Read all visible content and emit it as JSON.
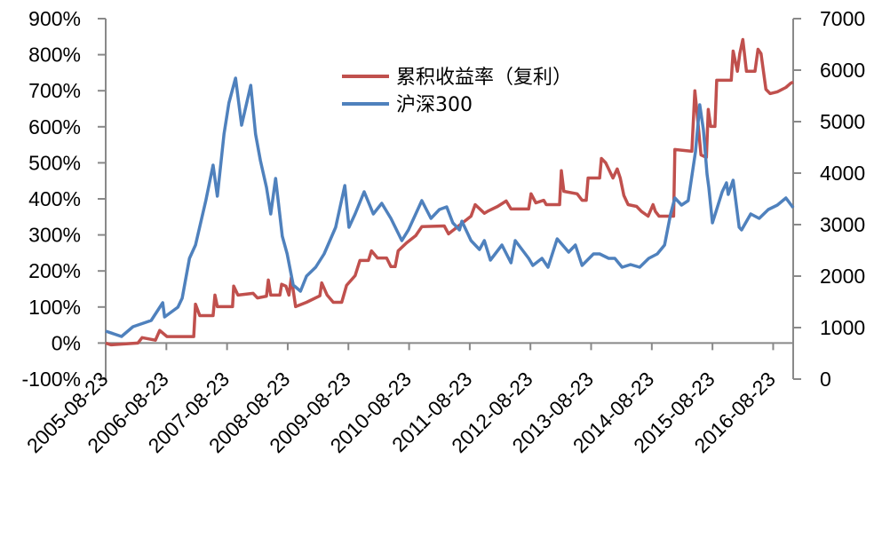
{
  "chart_data": {
    "type": "line",
    "title": "",
    "xlabel": "",
    "ylabel": "",
    "y2label": "",
    "grid": false,
    "legend_position": "top-center",
    "x_range": [
      2005.64,
      2016.97
    ],
    "x_ticks": [
      {
        "x": 2005.64,
        "label": "2005-08-23"
      },
      {
        "x": 2006.64,
        "label": "2006-08-23"
      },
      {
        "x": 2007.64,
        "label": "2007-08-23"
      },
      {
        "x": 2008.64,
        "label": "2008-08-23"
      },
      {
        "x": 2009.64,
        "label": "2009-08-23"
      },
      {
        "x": 2010.64,
        "label": "2010-08-23"
      },
      {
        "x": 2011.64,
        "label": "2011-08-23"
      },
      {
        "x": 2012.64,
        "label": "2012-08-23"
      },
      {
        "x": 2013.64,
        "label": "2013-08-23"
      },
      {
        "x": 2014.64,
        "label": "2014-08-23"
      },
      {
        "x": 2015.64,
        "label": "2015-08-23"
      },
      {
        "x": 2016.64,
        "label": "2016-08-23"
      }
    ],
    "y_left": {
      "range": [
        -100,
        900
      ],
      "ticks": [
        -100,
        0,
        100,
        200,
        300,
        400,
        500,
        600,
        700,
        800,
        900
      ],
      "tick_labels": [
        "-100%",
        "0%",
        "100%",
        "200%",
        "300%",
        "400%",
        "500%",
        "600%",
        "700%",
        "800%",
        "900%"
      ]
    },
    "y_right": {
      "range": [
        0,
        7000
      ],
      "ticks": [
        0,
        1000,
        2000,
        3000,
        4000,
        5000,
        6000,
        7000
      ],
      "tick_labels": [
        "0",
        "1000",
        "2000",
        "3000",
        "4000",
        "5000",
        "6000",
        "7000"
      ]
    },
    "series": [
      {
        "name": "累积收益率（复利）",
        "axis": "left",
        "color": "#c0504d",
        "points": [
          [
            2005.64,
            0
          ],
          [
            2005.73,
            -5
          ],
          [
            2006.17,
            0
          ],
          [
            2006.24,
            15
          ],
          [
            2006.46,
            8
          ],
          [
            2006.53,
            35
          ],
          [
            2006.65,
            18
          ],
          [
            2007.09,
            18
          ],
          [
            2007.12,
            108
          ],
          [
            2007.19,
            76
          ],
          [
            2007.41,
            76
          ],
          [
            2007.44,
            133
          ],
          [
            2007.48,
            101
          ],
          [
            2007.73,
            101
          ],
          [
            2007.75,
            158
          ],
          [
            2007.82,
            133
          ],
          [
            2008.07,
            138
          ],
          [
            2008.14,
            125
          ],
          [
            2008.29,
            130
          ],
          [
            2008.32,
            175
          ],
          [
            2008.36,
            133
          ],
          [
            2008.51,
            133
          ],
          [
            2008.54,
            163
          ],
          [
            2008.61,
            158
          ],
          [
            2008.66,
            133
          ],
          [
            2008.7,
            182
          ],
          [
            2008.77,
            101
          ],
          [
            2008.95,
            113
          ],
          [
            2009.17,
            131
          ],
          [
            2009.2,
            167
          ],
          [
            2009.29,
            133
          ],
          [
            2009.39,
            113
          ],
          [
            2009.53,
            113
          ],
          [
            2009.61,
            160
          ],
          [
            2009.75,
            187
          ],
          [
            2009.83,
            229
          ],
          [
            2009.97,
            229
          ],
          [
            2010.02,
            256
          ],
          [
            2010.12,
            236
          ],
          [
            2010.27,
            236
          ],
          [
            2010.34,
            212
          ],
          [
            2010.41,
            212
          ],
          [
            2010.46,
            256
          ],
          [
            2010.6,
            278
          ],
          [
            2010.75,
            298
          ],
          [
            2010.85,
            323
          ],
          [
            2011.22,
            325
          ],
          [
            2011.29,
            303
          ],
          [
            2011.66,
            352
          ],
          [
            2011.73,
            384
          ],
          [
            2011.88,
            360
          ],
          [
            2011.95,
            367
          ],
          [
            2012.1,
            379
          ],
          [
            2012.24,
            394
          ],
          [
            2012.32,
            372
          ],
          [
            2012.61,
            372
          ],
          [
            2012.65,
            414
          ],
          [
            2012.73,
            389
          ],
          [
            2012.86,
            396
          ],
          [
            2012.9,
            384
          ],
          [
            2013.12,
            384
          ],
          [
            2013.15,
            478
          ],
          [
            2013.19,
            421
          ],
          [
            2013.41,
            414
          ],
          [
            2013.49,
            396
          ],
          [
            2013.56,
            396
          ],
          [
            2013.59,
            458
          ],
          [
            2013.78,
            458
          ],
          [
            2013.81,
            512
          ],
          [
            2013.88,
            500
          ],
          [
            2014.0,
            458
          ],
          [
            2014.07,
            483
          ],
          [
            2014.12,
            458
          ],
          [
            2014.18,
            409
          ],
          [
            2014.25,
            384
          ],
          [
            2014.39,
            379
          ],
          [
            2014.47,
            365
          ],
          [
            2014.58,
            352
          ],
          [
            2014.66,
            384
          ],
          [
            2014.7,
            365
          ],
          [
            2014.76,
            352
          ],
          [
            2015.0,
            352
          ],
          [
            2015.02,
            537
          ],
          [
            2015.3,
            532
          ],
          [
            2015.35,
            700
          ],
          [
            2015.39,
            631
          ],
          [
            2015.45,
            522
          ],
          [
            2015.54,
            515
          ],
          [
            2015.57,
            648
          ],
          [
            2015.61,
            601
          ],
          [
            2015.68,
            601
          ],
          [
            2015.71,
            729
          ],
          [
            2015.95,
            729
          ],
          [
            2015.98,
            810
          ],
          [
            2016.05,
            754
          ],
          [
            2016.09,
            803
          ],
          [
            2016.14,
            842
          ],
          [
            2016.2,
            754
          ],
          [
            2016.34,
            754
          ],
          [
            2016.39,
            815
          ],
          [
            2016.44,
            803
          ],
          [
            2016.52,
            704
          ],
          [
            2016.59,
            692
          ],
          [
            2016.71,
            697
          ],
          [
            2016.85,
            709
          ],
          [
            2016.93,
            721
          ],
          [
            2016.97,
            724
          ]
        ]
      },
      {
        "name": "沪深300",
        "axis": "right",
        "color": "#4f81bd",
        "points": [
          [
            2005.64,
            931
          ],
          [
            2005.9,
            828
          ],
          [
            2006.09,
            1017
          ],
          [
            2006.39,
            1138
          ],
          [
            2006.58,
            1483
          ],
          [
            2006.61,
            1207
          ],
          [
            2006.83,
            1397
          ],
          [
            2006.9,
            1570
          ],
          [
            2007.02,
            2345
          ],
          [
            2007.12,
            2603
          ],
          [
            2007.29,
            3465
          ],
          [
            2007.41,
            4155
          ],
          [
            2007.48,
            3552
          ],
          [
            2007.59,
            4758
          ],
          [
            2007.67,
            5362
          ],
          [
            2007.78,
            5844
          ],
          [
            2007.88,
            4931
          ],
          [
            2008.03,
            5706
          ],
          [
            2008.11,
            4758
          ],
          [
            2008.19,
            4241
          ],
          [
            2008.29,
            3724
          ],
          [
            2008.36,
            3207
          ],
          [
            2008.44,
            3896
          ],
          [
            2008.55,
            2776
          ],
          [
            2008.63,
            2431
          ],
          [
            2008.73,
            1827
          ],
          [
            2008.85,
            1707
          ],
          [
            2008.95,
            2000
          ],
          [
            2009.1,
            2172
          ],
          [
            2009.24,
            2431
          ],
          [
            2009.43,
            2948
          ],
          [
            2009.58,
            3758
          ],
          [
            2009.65,
            2948
          ],
          [
            2009.75,
            3207
          ],
          [
            2009.9,
            3638
          ],
          [
            2010.05,
            3207
          ],
          [
            2010.19,
            3414
          ],
          [
            2010.34,
            3120
          ],
          [
            2010.52,
            2690
          ],
          [
            2010.63,
            2900
          ],
          [
            2010.85,
            3465
          ],
          [
            2011.0,
            3120
          ],
          [
            2011.14,
            3293
          ],
          [
            2011.26,
            3345
          ],
          [
            2011.36,
            3034
          ],
          [
            2011.47,
            2896
          ],
          [
            2011.51,
            3068
          ],
          [
            2011.66,
            2690
          ],
          [
            2011.8,
            2517
          ],
          [
            2011.88,
            2690
          ],
          [
            2011.98,
            2310
          ],
          [
            2012.17,
            2603
          ],
          [
            2012.32,
            2258
          ],
          [
            2012.39,
            2690
          ],
          [
            2012.61,
            2345
          ],
          [
            2012.68,
            2207
          ],
          [
            2012.83,
            2345
          ],
          [
            2012.93,
            2172
          ],
          [
            2013.08,
            2724
          ],
          [
            2013.27,
            2465
          ],
          [
            2013.38,
            2603
          ],
          [
            2013.49,
            2207
          ],
          [
            2013.68,
            2431
          ],
          [
            2013.78,
            2431
          ],
          [
            2013.93,
            2345
          ],
          [
            2014.03,
            2345
          ],
          [
            2014.15,
            2172
          ],
          [
            2014.29,
            2224
          ],
          [
            2014.44,
            2172
          ],
          [
            2014.59,
            2345
          ],
          [
            2014.73,
            2431
          ],
          [
            2014.85,
            2603
          ],
          [
            2014.95,
            3207
          ],
          [
            2015.02,
            3517
          ],
          [
            2015.13,
            3379
          ],
          [
            2015.24,
            3465
          ],
          [
            2015.36,
            4413
          ],
          [
            2015.43,
            5327
          ],
          [
            2015.49,
            4844
          ],
          [
            2015.55,
            3982
          ],
          [
            2015.58,
            3724
          ],
          [
            2015.64,
            3034
          ],
          [
            2015.7,
            3258
          ],
          [
            2015.8,
            3638
          ],
          [
            2015.87,
            3810
          ],
          [
            2015.9,
            3586
          ],
          [
            2015.98,
            3862
          ],
          [
            2016.08,
            2948
          ],
          [
            2016.12,
            2896
          ],
          [
            2016.27,
            3207
          ],
          [
            2016.41,
            3120
          ],
          [
            2016.56,
            3293
          ],
          [
            2016.71,
            3379
          ],
          [
            2016.85,
            3517
          ],
          [
            2016.97,
            3327
          ]
        ]
      }
    ]
  }
}
